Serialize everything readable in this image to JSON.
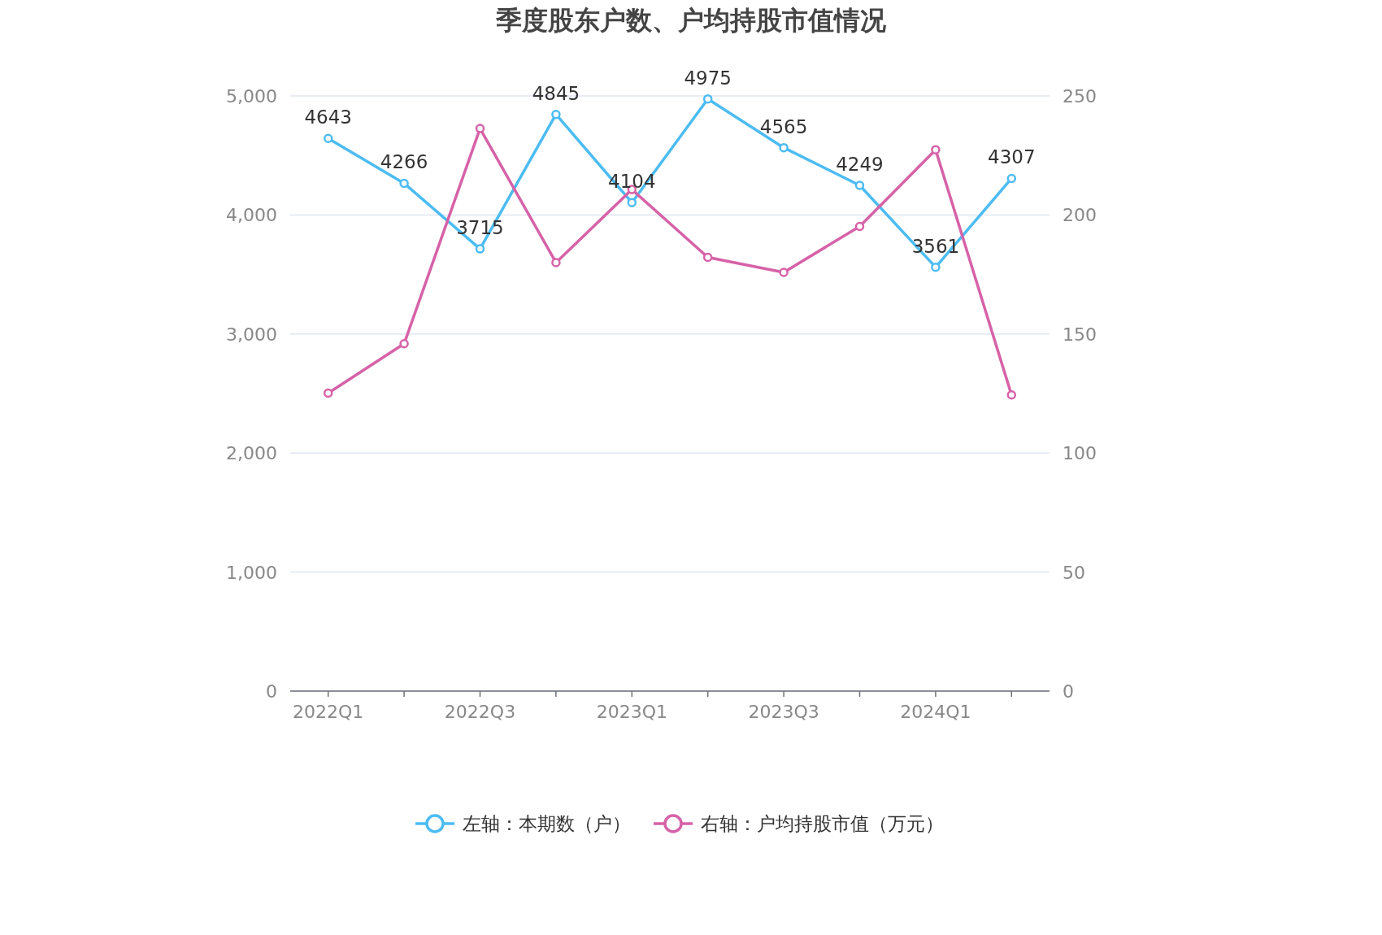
{
  "chart_data": {
    "type": "line",
    "title": "季度股东户数、户均持股市值情况",
    "categories": [
      "2022Q1",
      null,
      "2022Q3",
      null,
      "2023Q1",
      null,
      "2023Q3",
      null,
      "2024Q1",
      null
    ],
    "series": [
      {
        "name": "左轴：本期数（户）",
        "color": "#4cbcf2",
        "values": [
          4643,
          4266,
          3715,
          4845,
          4104,
          4975,
          4565,
          4249,
          3561,
          4307
        ],
        "value_labels": [
          "4643",
          "4266",
          "3715",
          "4845",
          "4104",
          "4975",
          "4565",
          "4249",
          "3561",
          "4307"
        ]
      },
      {
        "name": "右轴：户均持股市值（万元）",
        "color": "#d662a8",
        "axis": "y2",
        "values": [
          125.2,
          145.9,
          236.3,
          180.0,
          210.7,
          182.2,
          175.9,
          195.2,
          227.4,
          124.4
        ]
      }
    ],
    "ylim": [
      0,
      5000
    ],
    "yticks": [
      0,
      {
        "value": 1000,
        "label": "1,000"
      },
      {
        "value": 2000,
        "label": "2,000"
      },
      {
        "value": 3000,
        "label": "3,000"
      },
      {
        "value": 4000,
        "label": "4,000"
      },
      {
        "value": 5000,
        "label": "5,000"
      }
    ],
    "y2lim": [
      0,
      250
    ],
    "y2ticks": [
      0,
      50,
      100,
      150,
      200,
      250
    ],
    "grid": "y",
    "legend": "bottom",
    "marker": "circle",
    "line_style": "solid"
  }
}
